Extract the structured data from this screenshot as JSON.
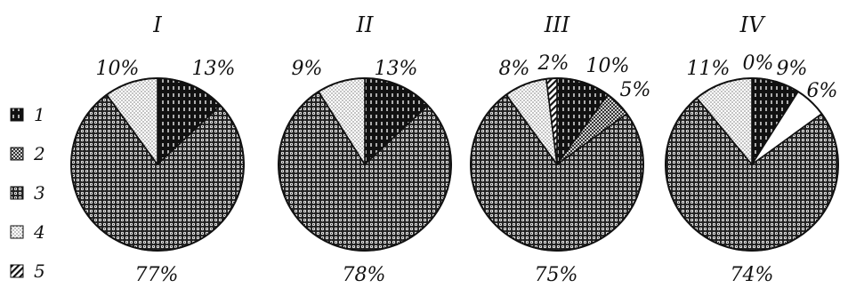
{
  "chart_data": [
    {
      "type": "pie",
      "title": "I",
      "slices": [
        {
          "legend": "1",
          "value": 13,
          "label": "13%"
        },
        {
          "legend": "3",
          "value": 77,
          "label": "77%"
        },
        {
          "legend": "4",
          "value": 10,
          "label": "10%"
        }
      ]
    },
    {
      "type": "pie",
      "title": "II",
      "slices": [
        {
          "legend": "1",
          "value": 13,
          "label": "13%"
        },
        {
          "legend": "3",
          "value": 78,
          "label": "78%"
        },
        {
          "legend": "4",
          "value": 9,
          "label": "9%"
        }
      ]
    },
    {
      "type": "pie",
      "title": "III",
      "slices": [
        {
          "legend": "1",
          "value": 10,
          "label": "10%"
        },
        {
          "legend": "2",
          "value": 5,
          "label": "5%"
        },
        {
          "legend": "3",
          "value": 75,
          "label": "75%"
        },
        {
          "legend": "4",
          "value": 8,
          "label": "8%"
        },
        {
          "legend": "5",
          "value": 2,
          "label": "2%"
        }
      ]
    },
    {
      "type": "pie",
      "title": "IV",
      "slices": [
        {
          "legend": "5",
          "value": 0,
          "label": "0%"
        },
        {
          "legend": "1",
          "value": 9,
          "label": "9%"
        },
        {
          "legend": "6",
          "value": 6,
          "label": "6%"
        },
        {
          "legend": "3",
          "value": 74,
          "label": "74%"
        },
        {
          "legend": "4",
          "value": 11,
          "label": "11%"
        }
      ]
    }
  ],
  "legend": {
    "placement": "left",
    "entries": [
      {
        "key": "1",
        "label": "1"
      },
      {
        "key": "2",
        "label": "2"
      },
      {
        "key": "3",
        "label": "3"
      },
      {
        "key": "4",
        "label": "4"
      },
      {
        "key": "5",
        "label": "5"
      }
    ]
  }
}
